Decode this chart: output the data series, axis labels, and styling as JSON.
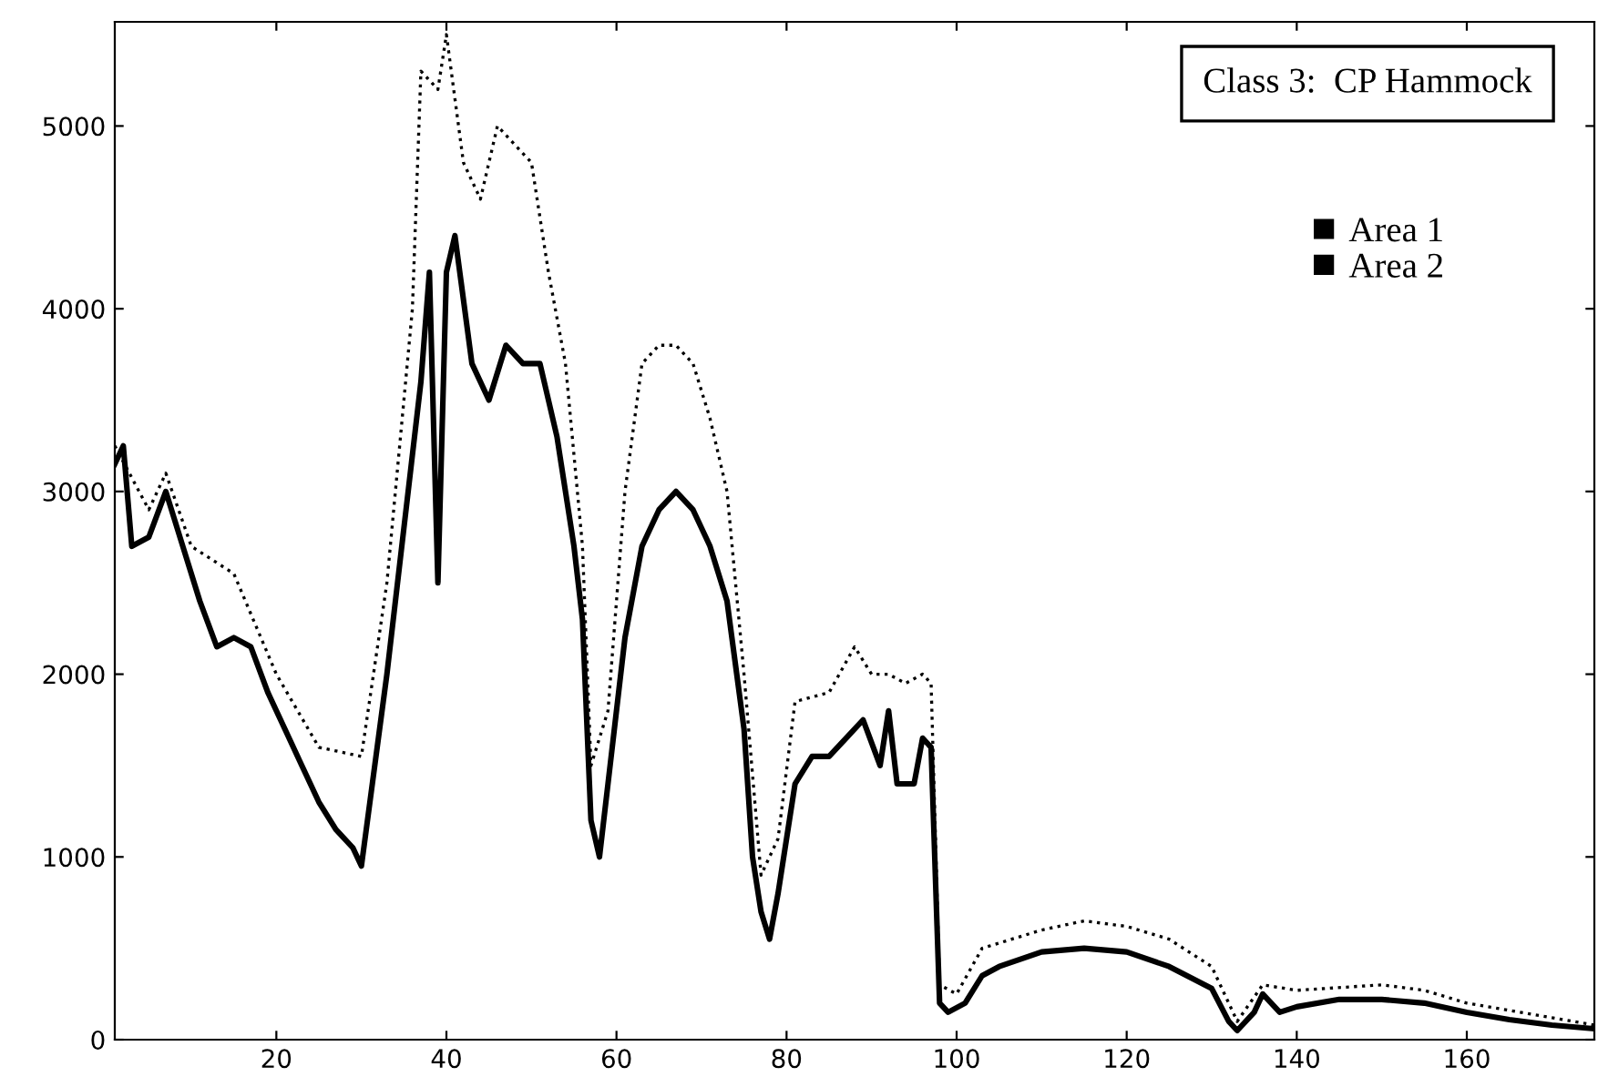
{
  "chart_data": {
    "type": "line",
    "title": "Class 3:  CP Hammock",
    "xlim": [
      1,
      175
    ],
    "xticks": [
      20,
      40,
      60,
      80,
      100,
      120,
      140,
      160
    ],
    "ylim": [
      0,
      5570
    ],
    "yticks": [
      0,
      1000,
      2000,
      3000,
      4000,
      5000
    ],
    "grid": false,
    "legend": "top right",
    "series": [
      {
        "name": "Area 1",
        "color": "#000000",
        "line_style": "solid",
        "x": [
          1,
          2,
          3,
          5,
          7,
          9,
          11,
          13,
          15,
          17,
          19,
          21,
          23,
          25,
          27,
          29,
          30,
          31,
          33,
          35,
          37,
          38,
          39,
          40,
          41,
          43,
          45,
          47,
          49,
          51,
          53,
          55,
          56,
          57,
          58,
          59,
          61,
          63,
          65,
          67,
          69,
          71,
          73,
          75,
          76,
          77,
          78,
          79,
          81,
          83,
          85,
          87,
          89,
          91,
          92,
          93,
          95,
          96,
          97,
          98,
          99,
          101,
          103,
          105,
          110,
          115,
          120,
          125,
          130,
          132,
          133,
          135,
          136,
          138,
          140,
          145,
          150,
          155,
          160,
          165,
          170,
          175
        ],
        "values": [
          3150,
          3250,
          2700,
          2750,
          3000,
          2700,
          2400,
          2150,
          2200,
          2150,
          1900,
          1700,
          1500,
          1300,
          1150,
          1050,
          950,
          1300,
          2000,
          2800,
          3600,
          4200,
          2500,
          4200,
          4400,
          3700,
          3500,
          3800,
          3700,
          3700,
          3300,
          2700,
          2300,
          1200,
          1000,
          1400,
          2200,
          2700,
          2900,
          3000,
          2900,
          2700,
          2400,
          1700,
          1000,
          700,
          550,
          800,
          1400,
          1550,
          1550,
          1650,
          1750,
          1500,
          1800,
          1400,
          1400,
          1650,
          1600,
          200,
          150,
          200,
          350,
          400,
          480,
          500,
          480,
          400,
          280,
          100,
          50,
          150,
          250,
          150,
          180,
          220,
          220,
          200,
          150,
          110,
          80,
          60
        ]
      },
      {
        "name": "Area 2",
        "color": "#000000",
        "line_style": "dotted",
        "x": [
          1,
          5,
          7,
          10,
          15,
          20,
          25,
          30,
          33,
          36,
          37,
          39,
          40,
          42,
          44,
          46,
          48,
          50,
          52,
          54,
          56,
          57,
          59,
          61,
          63,
          65,
          67,
          69,
          71,
          73,
          75,
          77,
          79,
          81,
          85,
          88,
          90,
          92,
          94,
          96,
          97,
          98,
          100,
          103,
          110,
          115,
          120,
          125,
          130,
          133,
          136,
          140,
          150,
          155,
          160,
          170,
          175
        ],
        "values": [
          3250,
          2900,
          3100,
          2700,
          2550,
          2000,
          1600,
          1550,
          2500,
          4000,
          5300,
          5200,
          5500,
          4800,
          4600,
          5000,
          4900,
          4800,
          4200,
          3700,
          2700,
          1500,
          1800,
          3000,
          3700,
          3800,
          3800,
          3700,
          3400,
          3000,
          2000,
          900,
          1100,
          1850,
          1900,
          2150,
          2000,
          2000,
          1950,
          2000,
          1950,
          300,
          250,
          500,
          600,
          650,
          620,
          550,
          400,
          100,
          300,
          270,
          300,
          270,
          200,
          120,
          80
        ]
      }
    ]
  }
}
